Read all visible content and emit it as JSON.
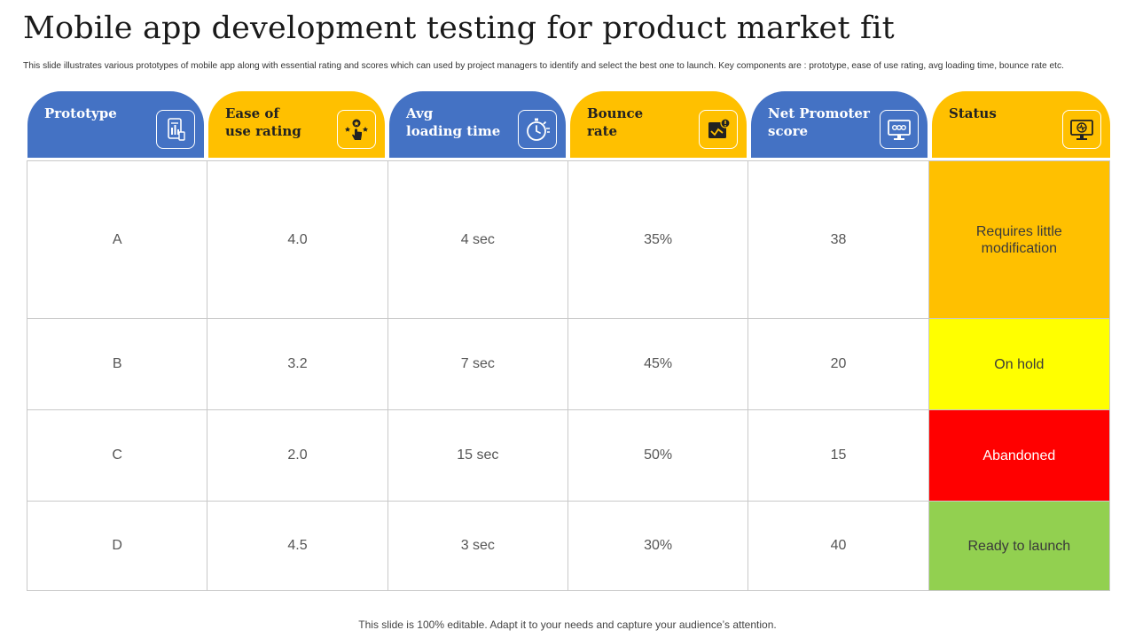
{
  "title": "Mobile app development testing for product market fit",
  "subtitle": "This slide illustrates various prototypes of mobile app along with essential rating and scores which can used by project managers to identify and select the best one to launch. Key components are : prototype, ease of use rating, avg loading time, bounce rate etc.",
  "headers": [
    {
      "label": "Prototype",
      "icon": "mobile-report-icon",
      "color": "#4472c4"
    },
    {
      "label": "Ease of\nuse rating",
      "icon": "rating-hand-icon",
      "color": "#ffc000"
    },
    {
      "label": "Avg\nloading time",
      "icon": "stopwatch-icon",
      "color": "#4472c4"
    },
    {
      "label": "Bounce\nrate",
      "icon": "bounce-chart-icon",
      "color": "#ffc000"
    },
    {
      "label": "Net Promoter\nscore",
      "icon": "monitor-score-icon",
      "color": "#4472c4"
    },
    {
      "label": "Status",
      "icon": "status-monitor-icon",
      "color": "#ffc000"
    }
  ],
  "rows": [
    {
      "cells": [
        "A",
        "4.0",
        "4 sec",
        "35%",
        "38"
      ],
      "status": "Requires little modification",
      "status_color": "#ffc000",
      "status_text_color": "#3a3a3a"
    },
    {
      "cells": [
        "B",
        "3.2",
        "7 sec",
        "45%",
        "20"
      ],
      "status": "On hold",
      "status_color": "#ffff00",
      "status_text_color": "#3a3a3a"
    },
    {
      "cells": [
        "C",
        "2.0",
        "15 sec",
        "50%",
        "15"
      ],
      "status": "Abandoned",
      "status_color": "#ff0000",
      "status_text_color": "#ffffff"
    },
    {
      "cells": [
        "D",
        "4.5",
        "3 sec",
        "30%",
        "40"
      ],
      "status": "Ready to launch",
      "status_color": "#92d050",
      "status_text_color": "#3a3a3a"
    }
  ],
  "footer": "This slide is 100% editable. Adapt it to your needs and capture your audience’s attention."
}
